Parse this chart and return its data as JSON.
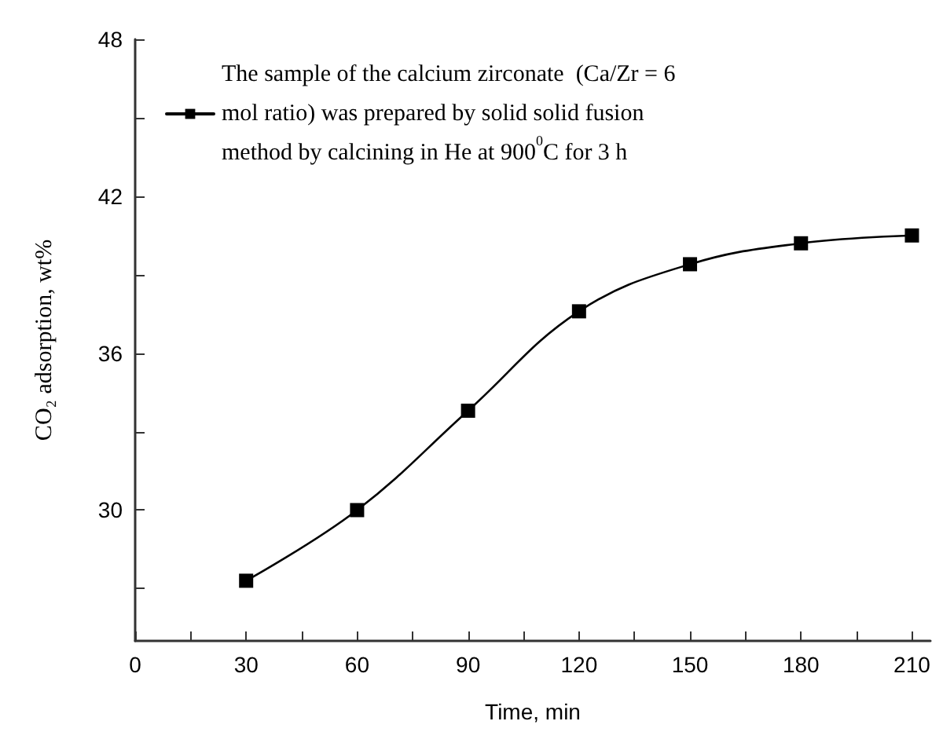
{
  "chart_data": {
    "type": "line",
    "xlabel": "Time, min",
    "ylabel": "CO₂ adsorption, wt%",
    "x": [
      30,
      60,
      90,
      120,
      150,
      180,
      210
    ],
    "series": [
      {
        "name": "The sample of the calcium zirconate  (Ca/Zr = 6 mol ratio) was prepared by solid solid fusion method by calcining in He at 900$^{0}$C for 3 h",
        "color": "#000000",
        "values": [
          27.3,
          30.0,
          33.8,
          37.6,
          39.4,
          40.2,
          40.5
        ]
      }
    ],
    "xlim": [
      0,
      215
    ],
    "ylim": [
      25,
      48
    ],
    "xticks": [
      0,
      {
        "value": 15,
        "label": null
      },
      30,
      {
        "value": 45,
        "label": null
      },
      60,
      {
        "value": 75,
        "label": null
      },
      90,
      {
        "value": 105,
        "label": null
      },
      120,
      {
        "value": 135,
        "label": null
      },
      150,
      {
        "value": 165,
        "label": null
      },
      180,
      {
        "value": 195,
        "label": null
      },
      210
    ],
    "yticks": [
      {
        "value": 27,
        "label": null
      },
      30,
      {
        "value": 33,
        "label": null
      },
      36,
      {
        "value": 39,
        "label": null
      },
      42,
      {
        "value": 45,
        "label": null
      },
      48
    ],
    "marker": "square",
    "line_style": "solid",
    "legend": "top left",
    "grid": false
  }
}
